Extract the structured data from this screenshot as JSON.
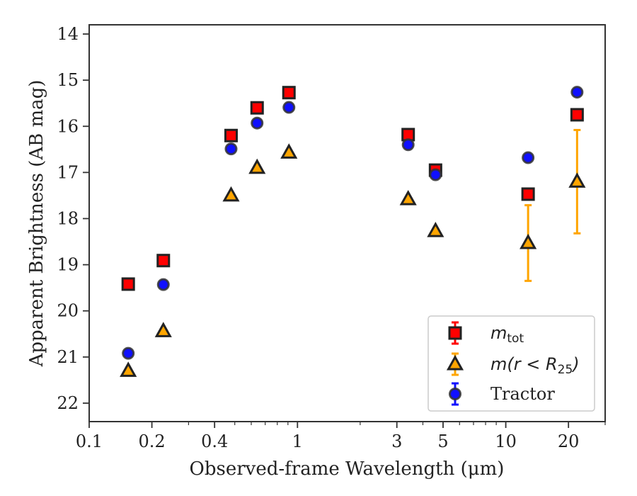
{
  "chart_data": {
    "type": "scatter",
    "xlabel": "Observed-frame Wavelength (μm)",
    "ylabel": "Apparent Brightness (AB mag)",
    "xscale": "log",
    "xlim": [
      0.1,
      30
    ],
    "ylim": [
      22.4,
      13.8
    ],
    "y_inverted": true,
    "xticks": [
      {
        "value": 0.1,
        "label": "0.1"
      },
      {
        "value": 0.2,
        "label": "0.2"
      },
      {
        "value": 0.4,
        "label": "0.4"
      },
      {
        "value": 1,
        "label": "1"
      },
      {
        "value": 3,
        "label": "3"
      },
      {
        "value": 5,
        "label": "5"
      },
      {
        "value": 10,
        "label": "10"
      },
      {
        "value": 20,
        "label": "20"
      }
    ],
    "yticks": [
      14,
      15,
      16,
      17,
      18,
      19,
      20,
      21,
      22
    ],
    "grid": false,
    "legend_position": "lower-right",
    "series": [
      {
        "name": "m_tot",
        "marker": "square",
        "color": "#ff0000",
        "edge": "#222222",
        "errcolor": "#ff0000",
        "points": [
          {
            "x": 0.154,
            "y": 19.42,
            "err": 0.05
          },
          {
            "x": 0.227,
            "y": 18.91,
            "err": 0.05
          },
          {
            "x": 0.48,
            "y": 16.2,
            "err": 0.05
          },
          {
            "x": 0.64,
            "y": 15.6,
            "err": 0.05
          },
          {
            "x": 0.91,
            "y": 15.27,
            "err": 0.05
          },
          {
            "x": 3.4,
            "y": 16.18,
            "err": 0.05
          },
          {
            "x": 4.6,
            "y": 16.95,
            "err": 0.05
          },
          {
            "x": 12.8,
            "y": 17.47,
            "err": 0.06
          },
          {
            "x": 22.0,
            "y": 15.75,
            "err": 0.06
          }
        ]
      },
      {
        "name": "m(r<R25)",
        "marker": "triangle",
        "color": "#ffa500",
        "edge": "#222222",
        "errcolor": "#ffa500",
        "points": [
          {
            "x": 0.154,
            "y": 21.3,
            "err": 0.0
          },
          {
            "x": 0.227,
            "y": 20.44,
            "err": 0.0
          },
          {
            "x": 0.48,
            "y": 17.5,
            "err": 0.0
          },
          {
            "x": 0.64,
            "y": 16.9,
            "err": 0.0
          },
          {
            "x": 0.91,
            "y": 16.57,
            "err": 0.0
          },
          {
            "x": 3.4,
            "y": 17.58,
            "err": 0.0
          },
          {
            "x": 4.6,
            "y": 18.27,
            "err": 0.0
          },
          {
            "x": 12.8,
            "y": 18.53,
            "err": 0.82
          },
          {
            "x": 22.0,
            "y": 17.2,
            "err": 1.12
          }
        ]
      },
      {
        "name": "Tractor",
        "marker": "circle",
        "color": "#1010ff",
        "edge": "#333333",
        "errcolor": "#1010ff",
        "points": [
          {
            "x": 0.154,
            "y": 20.92,
            "err": 0.05
          },
          {
            "x": 0.227,
            "y": 19.43,
            "err": 0.05
          },
          {
            "x": 0.48,
            "y": 16.49,
            "err": 0.05
          },
          {
            "x": 0.64,
            "y": 15.93,
            "err": 0.05
          },
          {
            "x": 0.91,
            "y": 15.59,
            "err": 0.05
          },
          {
            "x": 3.4,
            "y": 16.4,
            "err": 0.05
          },
          {
            "x": 4.6,
            "y": 17.05,
            "err": 0.05
          },
          {
            "x": 12.8,
            "y": 16.68,
            "err": 0.05
          },
          {
            "x": 22.0,
            "y": 15.26,
            "err": 0.05
          }
        ]
      }
    ]
  }
}
